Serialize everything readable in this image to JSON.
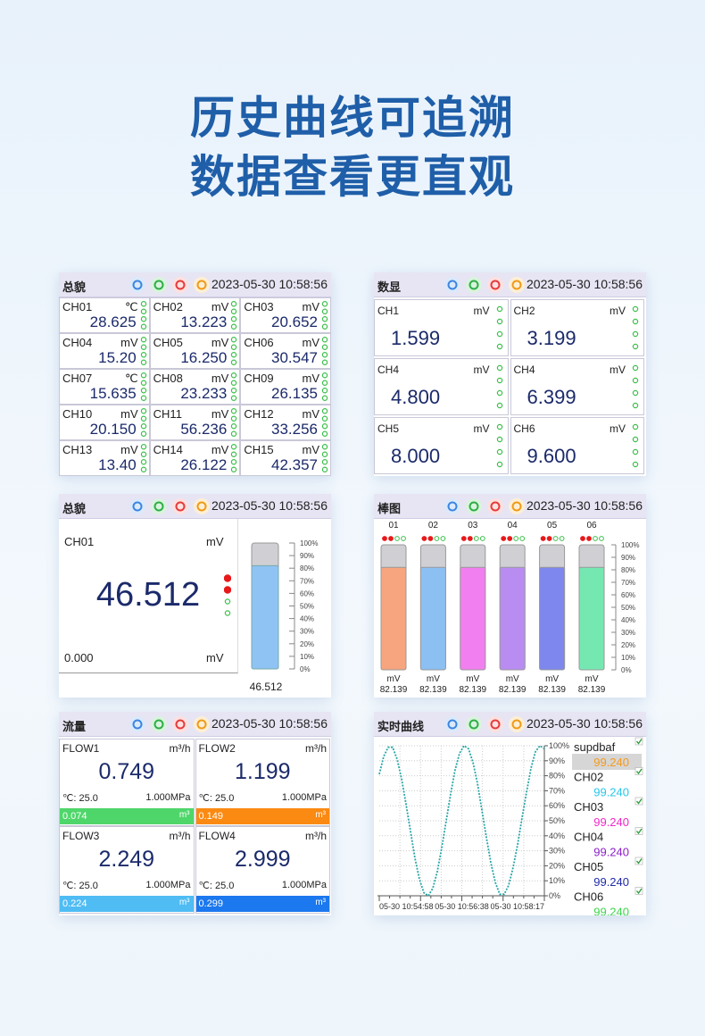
{
  "headline": [
    "历史曲线可追溯",
    "数据查看更直观"
  ],
  "panels": [
    {
      "title": "总貌",
      "datetime": "2023-05-30 10:58:56",
      "cells": [
        {
          "name": "CH01",
          "unit": "℃",
          "value": "28.625"
        },
        {
          "name": "CH02",
          "unit": "mV",
          "value": "13.223"
        },
        {
          "name": "CH03",
          "unit": "mV",
          "value": "20.652"
        },
        {
          "name": "CH04",
          "unit": "mV",
          "value": "15.20"
        },
        {
          "name": "CH05",
          "unit": "mV",
          "value": "16.250"
        },
        {
          "name": "CH06",
          "unit": "mV",
          "value": "30.547"
        },
        {
          "name": "CH07",
          "unit": "℃",
          "value": "15.635"
        },
        {
          "name": "CH08",
          "unit": "mV",
          "value": "23.233"
        },
        {
          "name": "CH09",
          "unit": "mV",
          "value": "26.135"
        },
        {
          "name": "CH10",
          "unit": "mV",
          "value": "20.150"
        },
        {
          "name": "CH11",
          "unit": "mV",
          "value": "56.236"
        },
        {
          "name": "CH12",
          "unit": "mV",
          "value": "33.256"
        },
        {
          "name": "CH13",
          "unit": "mV",
          "value": "13.40"
        },
        {
          "name": "CH14",
          "unit": "mV",
          "value": "26.122"
        },
        {
          "name": "CH15",
          "unit": "mV",
          "value": "42.357"
        }
      ]
    },
    {
      "title": "数显",
      "datetime": "2023-05-30 10:58:56",
      "cells": [
        {
          "name": "CH1",
          "unit": "mV",
          "value": "1.599"
        },
        {
          "name": "CH2",
          "unit": "mV",
          "value": "3.199"
        },
        {
          "name": "CH4",
          "unit": "mV",
          "value": "4.800"
        },
        {
          "name": "CH4",
          "unit": "mV",
          "value": "6.399"
        },
        {
          "name": "CH5",
          "unit": "mV",
          "value": "8.000"
        },
        {
          "name": "CH6",
          "unit": "mV",
          "value": "9.600"
        }
      ]
    },
    {
      "title": "总貌",
      "datetime": "2023-05-30 10:58:56",
      "channel": "CH01",
      "unit": "mV",
      "value": "46.512",
      "low": "0.000",
      "low_unit": "mV",
      "bar_label": "46.512",
      "bar_level": 82,
      "bar_color": "#8fc3f4",
      "scale": [
        {
          "value": 100,
          "label": "100%"
        },
        {
          "value": 90,
          "label": "90%"
        },
        {
          "value": 80,
          "label": "80%"
        },
        {
          "value": 70,
          "label": "70%"
        },
        {
          "value": 60,
          "label": "60%"
        },
        {
          "value": 50,
          "label": "50%"
        },
        {
          "value": 40,
          "label": "40%"
        },
        {
          "value": 30,
          "label": "30%"
        },
        {
          "value": 20,
          "label": "20%"
        },
        {
          "value": 10,
          "label": "10%"
        },
        {
          "value": 0,
          "label": "0%"
        }
      ]
    },
    {
      "title": "棒图",
      "datetime": "2023-05-30 10:58:56",
      "bars": [
        {
          "label": "01",
          "unit": "mV",
          "value": "82.139",
          "level": 82,
          "color": "#f6a57e"
        },
        {
          "label": "02",
          "unit": "mV",
          "value": "82.139",
          "level": 82,
          "color": "#8cc0f3"
        },
        {
          "label": "03",
          "unit": "mV",
          "value": "82.139",
          "level": 82,
          "color": "#f27ff0"
        },
        {
          "label": "04",
          "unit": "mV",
          "value": "82.139",
          "level": 82,
          "color": "#b98cf2"
        },
        {
          "label": "05",
          "unit": "mV",
          "value": "82.139",
          "level": 82,
          "color": "#7d87ee"
        },
        {
          "label": "06",
          "unit": "mV",
          "value": "82.139",
          "level": 82,
          "color": "#75e8b2"
        }
      ],
      "scale": [
        {
          "value": 100,
          "label": "100%"
        },
        {
          "value": 90,
          "label": "90%"
        },
        {
          "value": 80,
          "label": "80%"
        },
        {
          "value": 70,
          "label": "70%"
        },
        {
          "value": 60,
          "label": "60%"
        },
        {
          "value": 50,
          "label": "50%"
        },
        {
          "value": 40,
          "label": "40%"
        },
        {
          "value": 30,
          "label": "30%"
        },
        {
          "value": 20,
          "label": "20%"
        },
        {
          "value": 10,
          "label": "10%"
        },
        {
          "value": 0,
          "label": "0%"
        }
      ]
    },
    {
      "title": "流量",
      "datetime": "2023-05-30 10:58:56",
      "flows": [
        {
          "name": "FLOW1",
          "unit": "m³/h",
          "value": "0.749",
          "temp": "℃: 25.0",
          "pressure": "1.000MPa",
          "total": "0.074",
          "total_unit": "m³",
          "color": "#4fd66a"
        },
        {
          "name": "FLOW2",
          "unit": "m³/h",
          "value": "1.199",
          "temp": "℃: 25.0",
          "pressure": "1.000MPa",
          "total": "0.149",
          "total_unit": "m³",
          "color": "#fb8a12"
        },
        {
          "name": "FLOW3",
          "unit": "m³/h",
          "value": "2.249",
          "temp": "℃: 25.0",
          "pressure": "1.000MPa",
          "total": "0.224",
          "total_unit": "m³",
          "color": "#4fbcf4"
        },
        {
          "name": "FLOW4",
          "unit": "m³/h",
          "value": "2.999",
          "temp": "℃: 25.0",
          "pressure": "1.000MPa",
          "total": "0.299",
          "total_unit": "m³",
          "color": "#1b78ee"
        }
      ]
    },
    {
      "title": "实时曲线",
      "datetime": "2023-05-30 10:58:56",
      "ylim": [
        0,
        100
      ],
      "yticks": [
        {
          "value": 100,
          "label": "100%"
        },
        {
          "value": 90,
          "label": "90%"
        },
        {
          "value": 80,
          "label": "80%"
        },
        {
          "value": 70,
          "label": "70%"
        },
        {
          "value": 60,
          "label": "60%"
        },
        {
          "value": 50,
          "label": "50%"
        },
        {
          "value": 40,
          "label": "40%"
        },
        {
          "value": 30,
          "label": "30%"
        },
        {
          "value": 20,
          "label": "20%"
        },
        {
          "value": 10,
          "label": "10%"
        },
        {
          "value": 0,
          "label": "0%"
        }
      ],
      "xlabels": [
        "05-30 10:54:58",
        "05-30 10:56:38",
        "05-30 10:58:17"
      ],
      "line_color": "#2aa6a6",
      "values": [
        81,
        93,
        99,
        99,
        91,
        78,
        61,
        43,
        25,
        11,
        2,
        0,
        5,
        16,
        32,
        50,
        68,
        84,
        95,
        100,
        98,
        89,
        75,
        57,
        39,
        22,
        9,
        1,
        1,
        7,
        19,
        34,
        52,
        69,
        85,
        96,
        100,
        98
      ],
      "legend": [
        {
          "name": "supdbaf",
          "value": "99.240",
          "color": "#f59a1c"
        },
        {
          "name": "CH02",
          "value": "99.240",
          "color": "#28c6e8"
        },
        {
          "name": "CH03",
          "value": "99.240",
          "color": "#f028c8"
        },
        {
          "name": "CH04",
          "value": "99.240",
          "color": "#8a1ec8"
        },
        {
          "name": "CH05",
          "value": "99.240",
          "color": "#1e2aa8"
        },
        {
          "name": "CH06",
          "value": "99.240",
          "color": "#3cd64a"
        }
      ]
    }
  ]
}
